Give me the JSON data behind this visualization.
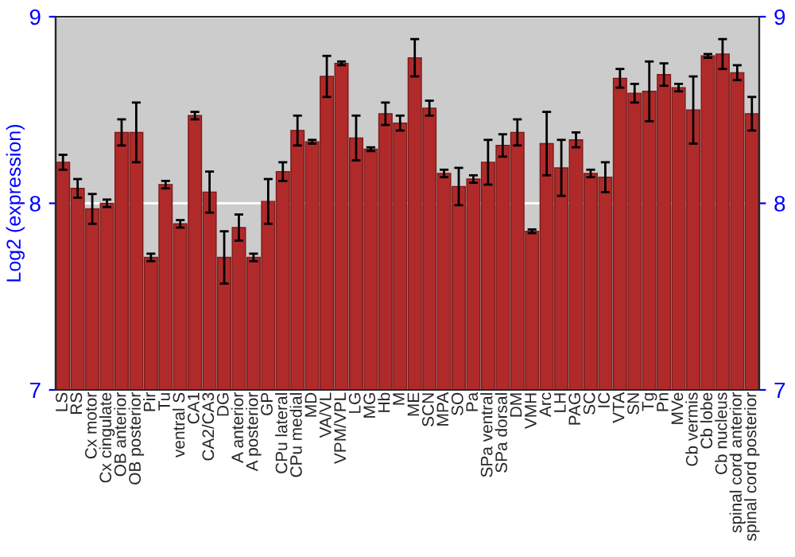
{
  "chart_data": {
    "type": "bar",
    "ylabel": "Log2 (expression)",
    "categories": [
      "LS",
      "RS",
      "Cx motor",
      "Cx cingulate",
      "OB anterior",
      "OB posterior",
      "Pir",
      "Tu",
      "ventral S",
      "CA1",
      "CA2/CA3",
      "DG",
      "A anterior",
      "A posterior",
      "GP",
      "CPu lateral",
      "CPu medial",
      "MD",
      "VA/VL",
      "VPM/VPL",
      "LG",
      "MG",
      "Hb",
      "M",
      "ME",
      "SCN",
      "MPA",
      "SO",
      "Pa",
      "SPa ventral",
      "SPa dorsal",
      "DM",
      "VMH",
      "Arc",
      "LH",
      "PAG",
      "SC",
      "IC",
      "VTA",
      "SN",
      "Tg",
      "Pn",
      "MVe",
      "Cb vermis",
      "Cb lobe",
      "Cb nucleus",
      "spinal cord anterior",
      "spinal cord posterior"
    ],
    "values": [
      8.22,
      8.08,
      7.97,
      8.0,
      8.38,
      8.38,
      7.71,
      8.1,
      7.89,
      8.47,
      8.06,
      7.71,
      7.87,
      7.71,
      8.01,
      8.17,
      8.39,
      8.33,
      8.68,
      8.75,
      8.35,
      8.29,
      8.48,
      8.43,
      8.78,
      8.51,
      8.16,
      8.09,
      8.13,
      8.22,
      8.31,
      8.38,
      7.85,
      8.32,
      8.19,
      8.34,
      8.16,
      8.14,
      8.67,
      8.59,
      8.6,
      8.69,
      8.62,
      8.5,
      8.79,
      8.8,
      8.7,
      8.48
    ],
    "errors": [
      0.04,
      0.05,
      0.08,
      0.02,
      0.07,
      0.16,
      0.02,
      0.02,
      0.02,
      0.02,
      0.11,
      0.14,
      0.07,
      0.02,
      0.12,
      0.05,
      0.08,
      0.01,
      0.11,
      0.01,
      0.12,
      0.01,
      0.06,
      0.04,
      0.1,
      0.04,
      0.02,
      0.1,
      0.02,
      0.12,
      0.06,
      0.07,
      0.01,
      0.17,
      0.15,
      0.04,
      0.02,
      0.08,
      0.05,
      0.05,
      0.16,
      0.06,
      0.02,
      0.18,
      0.01,
      0.08,
      0.04,
      0.09
    ],
    "color": "#b02a2a",
    "ylim": [
      7,
      9
    ],
    "yticks": [
      7,
      8,
      9
    ],
    "y2lim": [
      7,
      9
    ],
    "y2ticks": [
      7,
      8,
      9
    ],
    "grid": "y"
  }
}
